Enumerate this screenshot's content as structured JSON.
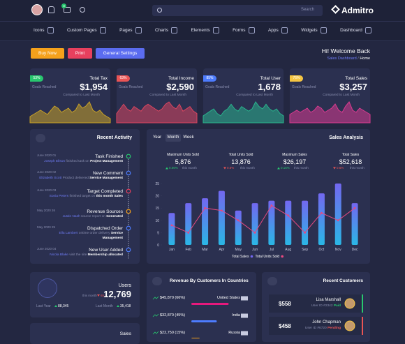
{
  "header": {
    "search_placeholder": "Search",
    "badge": "3",
    "logo": "Admitro"
  },
  "menu": [
    "Icons",
    "Custom Pages",
    "Pages",
    "Charts",
    "Elements",
    "Forms",
    "Apps",
    "Widgets",
    "Dashboard"
  ],
  "actions": [
    {
      "label": "Buy Now",
      "color": "#f5a11c"
    },
    {
      "label": "Print",
      "color": "#e8405e"
    },
    {
      "label": "General Settings",
      "color": "#5b6cf0"
    }
  ],
  "welcome": {
    "title": "Hi! Welcome Back",
    "breadcrumb": [
      "Sales Dashboard",
      "Home"
    ]
  },
  "stat_cards": [
    {
      "badge": "53%",
      "badge_color": "#28c76f",
      "goal": "Goals Reached",
      "title": "Total Tax",
      "value": "$1,954",
      "note": "Compared to Last Month",
      "color": "#c9a227",
      "sparkline": [
        3,
        4,
        5,
        6,
        5,
        4,
        6,
        8,
        7,
        5,
        6,
        7,
        5,
        6,
        9,
        7,
        8,
        10,
        6,
        5,
        6,
        4,
        3,
        2
      ]
    },
    {
      "badge": "63%",
      "badge_color": "#ea5455",
      "goal": "Goals Reached",
      "title": "Total Income",
      "value": "$2,590",
      "note": "Compared to Last Month",
      "color": "#d9455f",
      "sparkline": [
        4,
        6,
        8,
        6,
        5,
        7,
        6,
        5,
        7,
        8,
        7,
        6,
        5,
        6,
        8,
        9,
        7,
        6,
        8,
        5,
        6,
        7,
        5,
        4
      ]
    },
    {
      "badge": "85%",
      "badge_color": "#4d7cfe",
      "goal": "Goals Reached",
      "title": "Total User",
      "value": "1,678",
      "note": "Compared to Last Month",
      "color": "#29b38c",
      "sparkline": [
        3,
        4,
        5,
        6,
        4,
        3,
        5,
        6,
        8,
        6,
        5,
        7,
        6,
        5,
        6,
        9,
        7,
        6,
        8,
        6,
        5,
        6,
        4,
        3
      ]
    },
    {
      "badge": "76%",
      "badge_color": "#f5c542",
      "goal": "Goals Reached",
      "title": "Total Sales",
      "value": "$3,257",
      "note": "Compared to Last Month",
      "color": "#d93b8f",
      "sparkline": [
        4,
        5,
        6,
        5,
        6,
        7,
        5,
        6,
        8,
        7,
        5,
        6,
        7,
        9,
        6,
        5,
        8,
        10,
        6,
        5,
        7,
        6,
        5,
        4
      ]
    }
  ],
  "recent_activity": {
    "title": "Recent Activity",
    "items": [
      {
        "date": "June 2020 01",
        "title": "Task Finished",
        "name": "Joseph Elison",
        "text": "finished task on",
        "highlight": "Project Management",
        "color": "#28c76f"
      },
      {
        "date": "June 2020 02",
        "title": "New Comment",
        "name": "Elizabeth Scott",
        "text": "Product delivered",
        "highlight": "Service Management",
        "color": "#4d7cfe"
      },
      {
        "date": "June 2020 03",
        "title": "Target Completed",
        "name": "Sonia Peters",
        "text": "finished target on",
        "highlight": "this month Sales",
        "color": "#e8405e"
      },
      {
        "date": "May 2020 26",
        "title": "Revenue Sources",
        "name": "Justin Nash",
        "text": "source report on",
        "highlight": "Generated",
        "color": "#f5a11c"
      },
      {
        "date": "May 2020 25",
        "title": "Dispatched Order",
        "name": "Ella Lambert",
        "text": "ontime order delivery",
        "highlight": "Service Management",
        "color": "#4d7cfe"
      },
      {
        "date": "June 2020 04",
        "title": "New User Added",
        "name": "Nicola Blake",
        "text": "visit the site",
        "highlight": "Membership allocated",
        "color": "#4d7cfe"
      }
    ]
  },
  "sales_stats": [
    {
      "label": "Maximum Units Sold",
      "value": "5,876",
      "change": "0.06%",
      "change_dir": "up",
      "period": "this month"
    },
    {
      "label": "Total Units Sold",
      "value": "13,876",
      "change": "0.6%",
      "change_dir": "down",
      "period": "this month"
    },
    {
      "label": "Maximum Sales",
      "value": "$26,197",
      "change": "0.15%",
      "change_dir": "up",
      "period": "this month"
    },
    {
      "label": "Total Sales",
      "value": "$52,618",
      "change": "0.6%",
      "change_dir": "down",
      "period": "this month"
    }
  ],
  "chart_data": {
    "type": "bar",
    "title": "Sales Analysis",
    "tabs": [
      "Year",
      "Month",
      "Week"
    ],
    "active_tab": 1,
    "categories": [
      "Jan",
      "Feb",
      "Mar",
      "Apr",
      "May",
      "Jun",
      "Jul",
      "Aug",
      "Sep",
      "Oct",
      "Nov",
      "Dec"
    ],
    "series": [
      {
        "name": "Total Sales",
        "type": "bar",
        "color": "#7367f0",
        "values": [
          13,
          17,
          19,
          22,
          14,
          17,
          18,
          18,
          18,
          21,
          25,
          17
        ]
      },
      {
        "name": "Total Units Sold",
        "type": "line",
        "color": "#e64980",
        "values": [
          8,
          5,
          15,
          14,
          10,
          5,
          16,
          12,
          5,
          13,
          10,
          15
        ]
      }
    ],
    "ylim": [
      0,
      25
    ],
    "yticks": [
      0,
      5,
      10,
      15,
      20,
      25
    ]
  },
  "users": {
    "title": "Users",
    "period": "this month",
    "change": "65.3",
    "value": "12,769",
    "stats": [
      {
        "label": "Last Year",
        "value": "88,345"
      },
      {
        "label": "Last Month",
        "value": "35,418"
      }
    ]
  },
  "revenue": {
    "title": "Revenue By Customers In Countries",
    "rows": [
      {
        "label": "$45,870 (66%)",
        "percent": 66,
        "country": "United States",
        "color": "#e6197d"
      },
      {
        "label": "$32,870 (45%)",
        "percent": 45,
        "country": "India",
        "color": "#4d7cfe"
      },
      {
        "label": "$22,750 (15%)",
        "percent": 15,
        "country": "Russia",
        "color": "#f5a11c"
      }
    ]
  },
  "customers": {
    "title": "Recent Customers",
    "rows": [
      {
        "amount": "$558",
        "name": "Lisa Marshall",
        "id": "User ID #2342",
        "status": "Paid",
        "status_color": "#28c76f"
      },
      {
        "amount": "$458",
        "name": "John Chapman",
        "id": "User ID #6720",
        "status": "Pending",
        "status_color": "#ea5455"
      }
    ]
  },
  "sales_card": {
    "title": "Sales"
  }
}
